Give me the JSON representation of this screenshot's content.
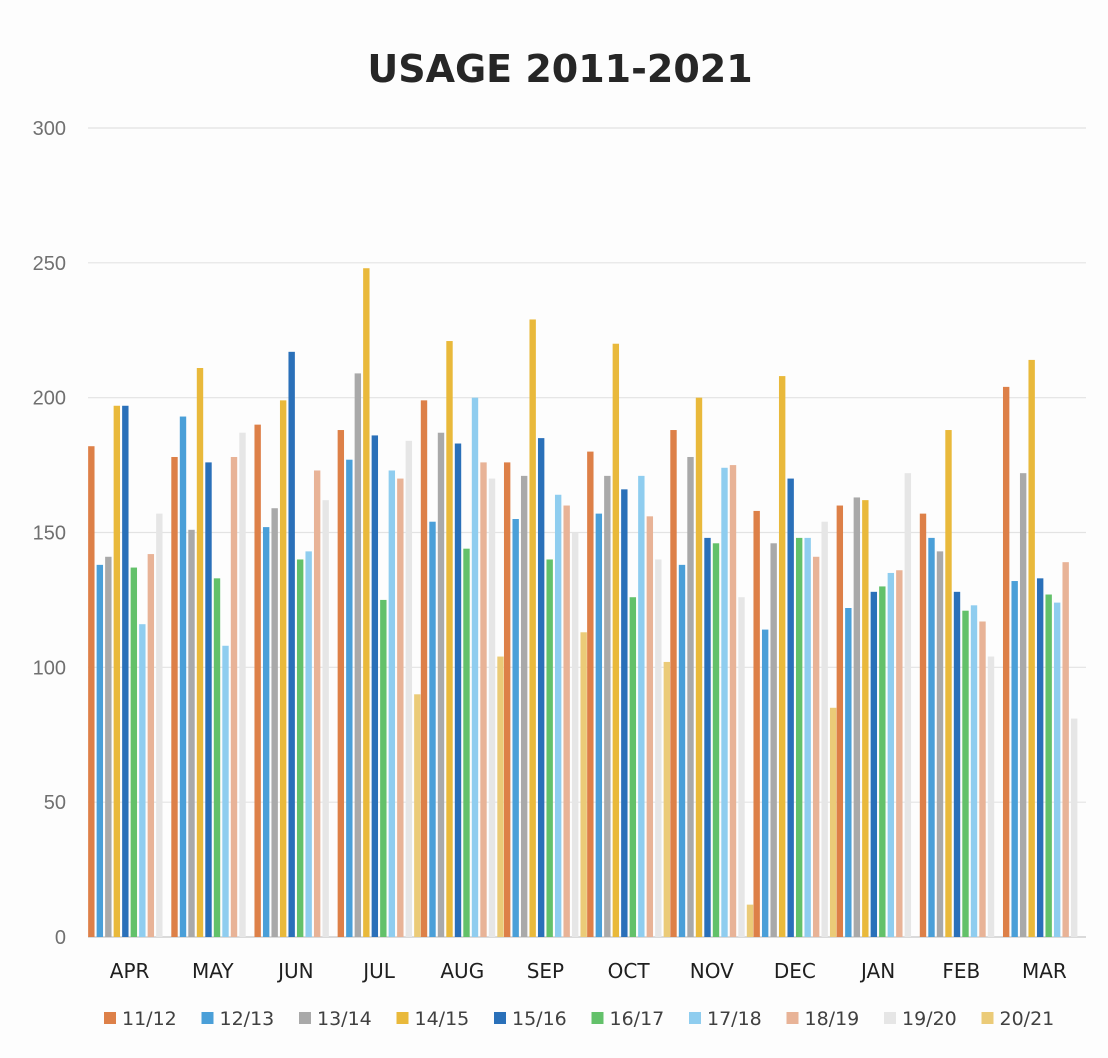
{
  "chart_data": {
    "type": "bar",
    "title": "USAGE  2011-2021",
    "xlabel": "",
    "ylabel": "",
    "ylim": [
      0,
      300
    ],
    "yticks": [
      0,
      50,
      100,
      150,
      200,
      250,
      300
    ],
    "grid": true,
    "legend_position": "bottom",
    "categories": [
      "APR",
      "MAY",
      "JUN",
      "JUL",
      "AUG",
      "SEP",
      "OCT",
      "NOV",
      "DEC",
      "JAN",
      "FEB",
      "MAR"
    ],
    "series": [
      {
        "name": "11/12",
        "color": "#dd8048",
        "values": [
          182,
          178,
          190,
          188,
          199,
          176,
          180,
          188,
          158,
          160,
          157,
          204
        ]
      },
      {
        "name": "12/13",
        "color": "#4a9fd8",
        "values": [
          138,
          193,
          152,
          177,
          154,
          155,
          157,
          138,
          114,
          122,
          148,
          132
        ]
      },
      {
        "name": "13/14",
        "color": "#a9a9a9",
        "values": [
          141,
          151,
          159,
          209,
          187,
          171,
          171,
          178,
          146,
          163,
          143,
          172
        ]
      },
      {
        "name": "14/15",
        "color": "#e9b93b",
        "values": [
          197,
          211,
          199,
          248,
          221,
          229,
          220,
          200,
          208,
          162,
          188,
          214
        ]
      },
      {
        "name": "15/16",
        "color": "#2a70b9",
        "values": [
          197,
          176,
          217,
          186,
          183,
          185,
          166,
          148,
          170,
          128,
          128,
          133
        ]
      },
      {
        "name": "16/17",
        "color": "#63c16a",
        "values": [
          137,
          133,
          140,
          125,
          144,
          140,
          126,
          146,
          148,
          130,
          121,
          127
        ]
      },
      {
        "name": "17/18",
        "color": "#8fcdef",
        "values": [
          116,
          108,
          143,
          173,
          200,
          164,
          171,
          174,
          148,
          135,
          123,
          124
        ]
      },
      {
        "name": "18/19",
        "color": "#e8b397",
        "values": [
          142,
          178,
          173,
          170,
          176,
          160,
          156,
          175,
          141,
          136,
          117,
          139
        ]
      },
      {
        "name": "19/20",
        "color": "#e6e6e6",
        "values": [
          157,
          187,
          162,
          184,
          170,
          150,
          140,
          126,
          154,
          172,
          104,
          81
        ]
      },
      {
        "name": "20/21",
        "color": "#ebcb78",
        "values": [
          0,
          0,
          0,
          90,
          104,
          113,
          102,
          12,
          85,
          0,
          0,
          0
        ]
      }
    ]
  }
}
